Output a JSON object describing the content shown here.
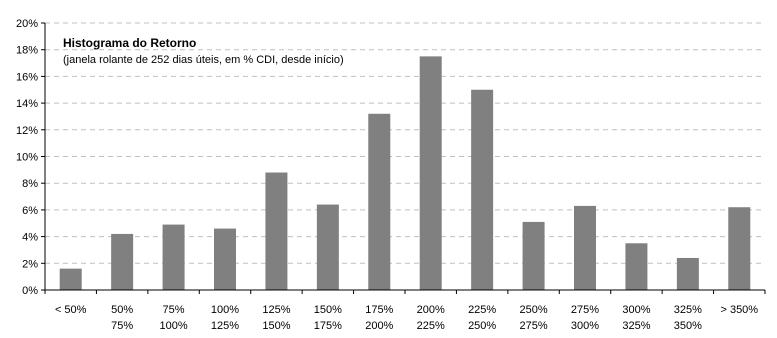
{
  "chart_data": {
    "type": "bar",
    "title": "Histograma do Retorno",
    "subtitle": "(janela rolante de 252 dias úteis, em % CDI, desde início)",
    "xlabel": "",
    "ylabel": "",
    "ylim": [
      0,
      20
    ],
    "yticks": [
      "0%",
      "2%",
      "4%",
      "6%",
      "8%",
      "10%",
      "12%",
      "14%",
      "16%",
      "18%",
      "20%"
    ],
    "grid": true,
    "categories": [
      [
        "<   50%",
        ""
      ],
      [
        "50%",
        "75%"
      ],
      [
        "75%",
        "100%"
      ],
      [
        "100%",
        "125%"
      ],
      [
        "125%",
        "150%"
      ],
      [
        "150%",
        "175%"
      ],
      [
        "175%",
        "200%"
      ],
      [
        "200%",
        "225%"
      ],
      [
        "225%",
        "250%"
      ],
      [
        "250%",
        "275%"
      ],
      [
        "275%",
        "300%"
      ],
      [
        "300%",
        "325%"
      ],
      [
        "325%",
        "350%"
      ],
      [
        "> 350%",
        ""
      ]
    ],
    "values": [
      1.6,
      4.2,
      4.9,
      4.6,
      8.8,
      6.4,
      13.2,
      17.5,
      15.0,
      5.1,
      6.3,
      3.5,
      2.4,
      6.2
    ],
    "colors": {
      "bar": "#808080",
      "grid": "#c0c0c0",
      "axis": "#000000"
    }
  }
}
